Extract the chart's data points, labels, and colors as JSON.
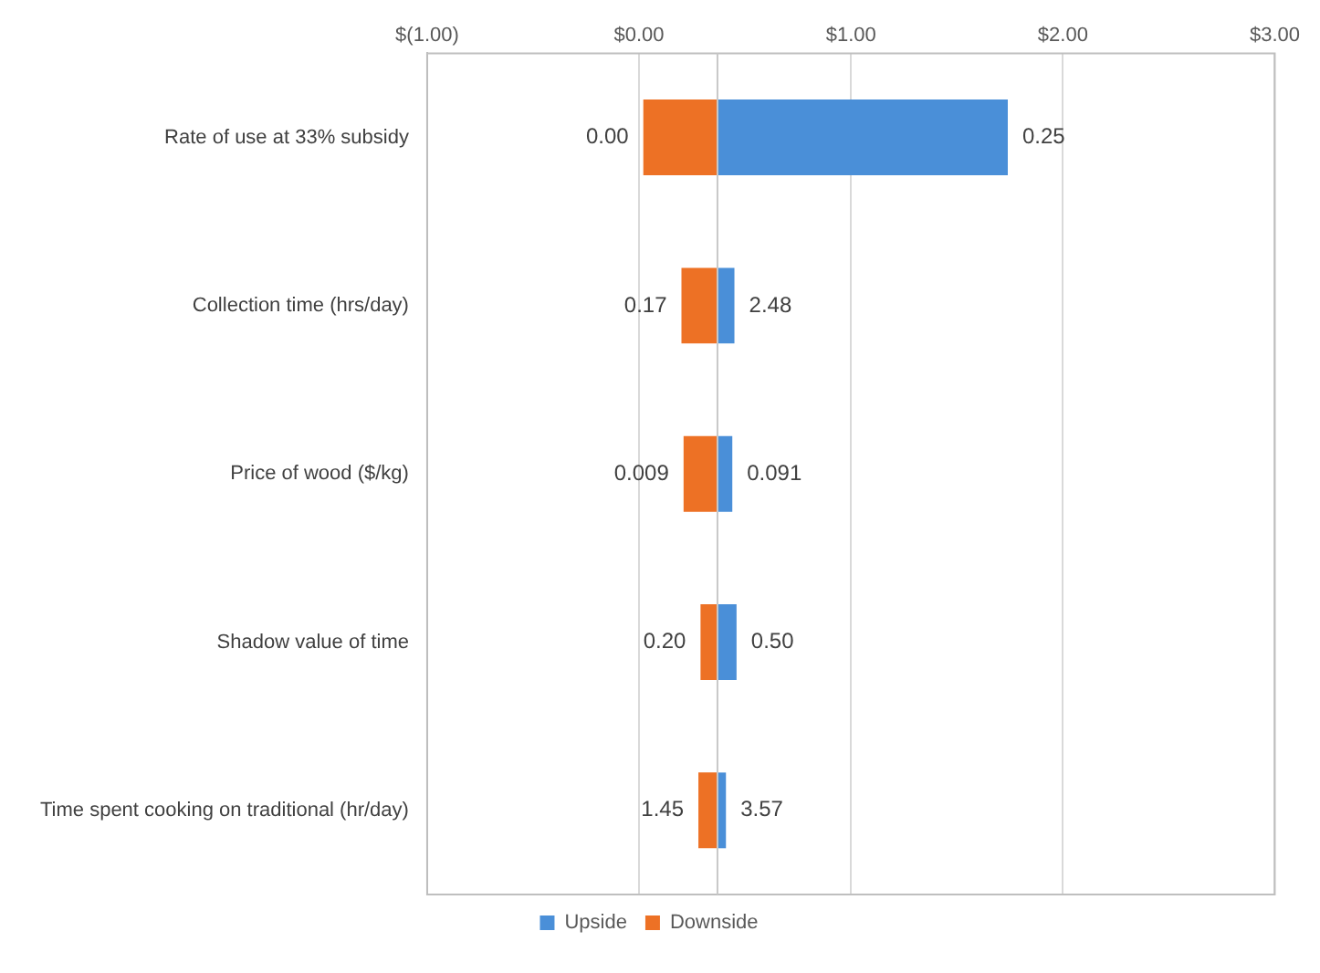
{
  "chart_data": {
    "type": "bar",
    "orientation": "horizontal",
    "categories": [
      "Rate of use at 33% subsidy",
      "Collection time (hrs/day)",
      "Price of wood ($/kg)",
      "Shadow value of time",
      "Time spent cooking on traditional (hr/day)"
    ],
    "series": [
      {
        "name": "Upside",
        "color": "#4a8fd8",
        "base": [
          0.37,
          0.37,
          0.37,
          0.37,
          0.37
        ],
        "values": [
          1.37,
          0.08,
          0.07,
          0.09,
          0.04
        ]
      },
      {
        "name": "Downside",
        "color": "#ed7125",
        "base": [
          0.02,
          0.2,
          0.21,
          0.29,
          0.28
        ],
        "values": [
          0.35,
          0.17,
          0.16,
          0.08,
          0.09
        ]
      }
    ],
    "annotations": [
      {
        "text": "0.25",
        "x": 1.74,
        "y": "Rate of use at 33% subsidy"
      },
      {
        "text": "0.00",
        "x": 0.02,
        "y": "Rate of use at 33% subsidy"
      },
      {
        "text": "2.48",
        "x": 0.45,
        "y": "Collection time (hrs/day)"
      },
      {
        "text": "0.17",
        "x": 0.2,
        "y": "Collection time (hrs/day)"
      },
      {
        "text": "0.091",
        "x": 0.44,
        "y": "Price of wood ($/kg)"
      },
      {
        "text": "0.009",
        "x": 0.21,
        "y": "Price of wood ($/kg)"
      },
      {
        "text": "0.50",
        "x": 0.46,
        "y": "Shadow value of time"
      },
      {
        "text": "0.20",
        "x": 0.29,
        "y": "Shadow value of time"
      },
      {
        "text": "3.57",
        "x": 0.41,
        "y": "Time spent cooking on traditional (hr/day)"
      },
      {
        "text": "1.45",
        "x": 0.28,
        "y": "Time spent cooking on traditional (hr/day)"
      }
    ],
    "xlim": [
      -1,
      3
    ],
    "xticks": [
      {
        "value": -1,
        "label": "$(1.00)"
      },
      {
        "value": 0,
        "label": "$0.00"
      },
      {
        "value": 1,
        "label": "$1.00"
      },
      {
        "value": 2,
        "label": "$2.00"
      },
      {
        "value": 3,
        "label": "$3.00"
      }
    ],
    "ref_lines": [
      {
        "axis": "x",
        "value": 0.37,
        "label": null,
        "color": "#c8c8c8"
      }
    ],
    "grid": "x",
    "legend": "bottom"
  }
}
